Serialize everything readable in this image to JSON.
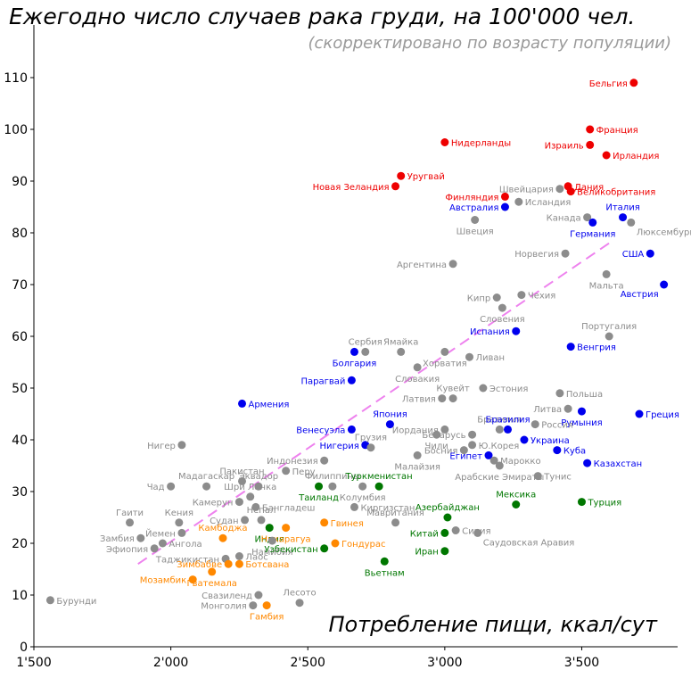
{
  "chart_data": {
    "type": "scatter",
    "title": "Ежегодно число случаев рака груди, на 100'000 чел.",
    "subtitle": "(скорректировано по возрасту популяции)",
    "xlabel": "Потребление пищи, ккал/сут",
    "ylabel": "",
    "xlim": [
      1500,
      3850
    ],
    "ylim": [
      0,
      115
    ],
    "xticks": [
      1500,
      2000,
      2500,
      3000,
      3500
    ],
    "xtick_labels": [
      "1'500",
      "2'000",
      "2'500",
      "3'000",
      "3'500"
    ],
    "yticks": [
      0,
      10,
      20,
      30,
      40,
      50,
      60,
      70,
      80,
      90,
      100,
      110
    ],
    "ytick_labels": [
      "0",
      "10",
      "20",
      "30",
      "40",
      "50",
      "60",
      "70",
      "80",
      "90",
      "100",
      "110"
    ],
    "trend_line": {
      "x": [
        1880,
        3600
      ],
      "y": [
        16,
        78
      ],
      "color": "#ee82ee",
      "style": "dashed"
    },
    "colors": {
      "gray": "#8c8c8c",
      "red": "#ee0000",
      "blue": "#0000ee",
      "green": "#007700",
      "orange": "#ff8800"
    },
    "points": [
      {
        "label": "Бельгия",
        "x": 3690,
        "y": 109,
        "c": "red",
        "a": "l"
      },
      {
        "label": "Франция",
        "x": 3530,
        "y": 100,
        "c": "red",
        "a": "r"
      },
      {
        "label": "Нидерланды",
        "x": 3000,
        "y": 97.5,
        "c": "red",
        "a": "r"
      },
      {
        "label": "Израиль",
        "x": 3530,
        "y": 97,
        "c": "red",
        "a": "l"
      },
      {
        "label": "Ирландия",
        "x": 3590,
        "y": 95,
        "c": "red",
        "a": "r"
      },
      {
        "label": "Уругвай",
        "x": 2840,
        "y": 91,
        "c": "red",
        "a": "r"
      },
      {
        "label": "Новая Зеландия",
        "x": 2820,
        "y": 89,
        "c": "red",
        "a": "l"
      },
      {
        "label": "Дания",
        "x": 3450,
        "y": 89,
        "c": "red",
        "a": "r"
      },
      {
        "label": "Великобритания",
        "x": 3460,
        "y": 88,
        "c": "red",
        "a": "r"
      },
      {
        "label": "Финляндия",
        "x": 3220,
        "y": 87,
        "c": "red",
        "a": "l"
      },
      {
        "label": "Швейцария",
        "x": 3420,
        "y": 88.5,
        "c": "gray",
        "a": "l"
      },
      {
        "label": "Исландия",
        "x": 3270,
        "y": 86,
        "c": "gray",
        "a": "r"
      },
      {
        "label": "Австралия",
        "x": 3220,
        "y": 85,
        "c": "blue",
        "a": "l"
      },
      {
        "label": "Швеция",
        "x": 3110,
        "y": 82.5,
        "c": "gray",
        "a": "b"
      },
      {
        "label": "Канада",
        "x": 3520,
        "y": 83,
        "c": "gray",
        "a": "l"
      },
      {
        "label": "Италия",
        "x": 3650,
        "y": 83,
        "c": "blue",
        "a": "t"
      },
      {
        "label": "Германия",
        "x": 3540,
        "y": 82,
        "c": "blue",
        "a": "b"
      },
      {
        "label": "Люксембург",
        "x": 3680,
        "y": 82,
        "c": "gray",
        "a": "br"
      },
      {
        "label": "Норвегия",
        "x": 3440,
        "y": 76,
        "c": "gray",
        "a": "l"
      },
      {
        "label": "США",
        "x": 3750,
        "y": 76,
        "c": "blue",
        "a": "l"
      },
      {
        "label": "Аргентина",
        "x": 3030,
        "y": 74,
        "c": "gray",
        "a": "l"
      },
      {
        "label": "Мальта",
        "x": 3590,
        "y": 72,
        "c": "gray",
        "a": "b"
      },
      {
        "label": "Австрия",
        "x": 3800,
        "y": 70,
        "c": "blue",
        "a": "bl"
      },
      {
        "label": "Кипр",
        "x": 3190,
        "y": 67.5,
        "c": "gray",
        "a": "l"
      },
      {
        "label": "Чехия",
        "x": 3280,
        "y": 68,
        "c": "gray",
        "a": "r"
      },
      {
        "label": "Словения",
        "x": 3210,
        "y": 65.5,
        "c": "gray",
        "a": "b"
      },
      {
        "label": "Испания",
        "x": 3260,
        "y": 61,
        "c": "blue",
        "a": "l"
      },
      {
        "label": "Португалия",
        "x": 3600,
        "y": 60,
        "c": "gray",
        "a": "t"
      },
      {
        "label": "Венгрия",
        "x": 3460,
        "y": 58,
        "c": "blue",
        "a": "r"
      },
      {
        "label": "Сербия",
        "x": 2710,
        "y": 57,
        "c": "gray",
        "a": "t"
      },
      {
        "label": "Болгария",
        "x": 2670,
        "y": 57,
        "c": "blue",
        "a": "b"
      },
      {
        "label": "Ямайка",
        "x": 2840,
        "y": 57,
        "c": "gray",
        "a": "t"
      },
      {
        "label": "Хорватия",
        "x": 3000,
        "y": 57,
        "c": "gray",
        "a": "b"
      },
      {
        "label": "Ливан",
        "x": 3090,
        "y": 56,
        "c": "gray",
        "a": "r"
      },
      {
        "label": "Словакия",
        "x": 2900,
        "y": 54,
        "c": "gray",
        "a": "b"
      },
      {
        "label": "Парагвай",
        "x": 2660,
        "y": 51.5,
        "c": "blue",
        "a": "l"
      },
      {
        "label": "Польша",
        "x": 3420,
        "y": 49,
        "c": "gray",
        "a": "r"
      },
      {
        "label": "Кувейт",
        "x": 3030,
        "y": 48,
        "c": "gray",
        "a": "t"
      },
      {
        "label": "Эстония",
        "x": 3140,
        "y": 50,
        "c": "gray",
        "a": "r"
      },
      {
        "label": "Латвия",
        "x": 2990,
        "y": 48,
        "c": "gray",
        "a": "l"
      },
      {
        "label": "Армения",
        "x": 2260,
        "y": 47,
        "c": "blue",
        "a": "r"
      },
      {
        "label": "Литва",
        "x": 3450,
        "y": 46,
        "c": "gray",
        "a": "l"
      },
      {
        "label": "Румыния",
        "x": 3500,
        "y": 45.5,
        "c": "blue",
        "a": "b"
      },
      {
        "label": "Греция",
        "x": 3710,
        "y": 45,
        "c": "blue",
        "a": "r"
      },
      {
        "label": "Бразилия",
        "x": 3200,
        "y": 42,
        "c": "gray",
        "a": "t"
      },
      {
        "label": "Бразилия",
        "x": 3230,
        "y": 42,
        "c": "blue",
        "a": "t"
      },
      {
        "label": "Япония",
        "x": 2800,
        "y": 43,
        "c": "blue",
        "a": "t"
      },
      {
        "label": "Иордания",
        "x": 3000,
        "y": 42,
        "c": "gray",
        "a": "l"
      },
      {
        "label": "Россия",
        "x": 3330,
        "y": 43,
        "c": "gray",
        "a": "r"
      },
      {
        "label": "Венесуэла",
        "x": 2660,
        "y": 42,
        "c": "blue",
        "a": "l"
      },
      {
        "label": "Беларусь",
        "x": 3100,
        "y": 41,
        "c": "gray",
        "a": "l"
      },
      {
        "label": "Чили",
        "x": 2970,
        "y": 41,
        "c": "gray",
        "a": "b"
      },
      {
        "label": "Украина",
        "x": 3290,
        "y": 40,
        "c": "blue",
        "a": "r"
      },
      {
        "label": "Нигер",
        "x": 2040,
        "y": 39,
        "c": "gray",
        "a": "l"
      },
      {
        "label": "Нигерия",
        "x": 2710,
        "y": 39,
        "c": "blue",
        "a": "l"
      },
      {
        "label": "Грузия",
        "x": 2730,
        "y": 38.5,
        "c": "gray",
        "a": "t"
      },
      {
        "label": "Ю.Корея",
        "x": 3100,
        "y": 39,
        "c": "gray",
        "a": "r"
      },
      {
        "label": "Босния",
        "x": 3070,
        "y": 38,
        "c": "gray",
        "a": "l"
      },
      {
        "label": "Куба",
        "x": 3410,
        "y": 38,
        "c": "blue",
        "a": "r"
      },
      {
        "label": "Египет",
        "x": 3160,
        "y": 37,
        "c": "blue",
        "a": "l"
      },
      {
        "label": "Марокко",
        "x": 3180,
        "y": 36,
        "c": "gray",
        "a": "r"
      },
      {
        "label": "Малайзия",
        "x": 2900,
        "y": 37,
        "c": "gray",
        "a": "b"
      },
      {
        "label": "Индонезия",
        "x": 2560,
        "y": 36,
        "c": "gray",
        "a": "l"
      },
      {
        "label": "Казахстан",
        "x": 3520,
        "y": 35.5,
        "c": "blue",
        "a": "r"
      },
      {
        "label": "Арабские Эмираты",
        "x": 3200,
        "y": 35,
        "c": "gray",
        "a": "b"
      },
      {
        "label": "Перу",
        "x": 2420,
        "y": 34,
        "c": "gray",
        "a": "r"
      },
      {
        "label": "Тунис",
        "x": 3340,
        "y": 33,
        "c": "gray",
        "a": "r"
      },
      {
        "label": "Пакистан",
        "x": 2260,
        "y": 32,
        "c": "gray",
        "a": "t"
      },
      {
        "label": "Эквадор",
        "x": 2320,
        "y": 31,
        "c": "gray",
        "a": "t"
      },
      {
        "label": "Филиппины",
        "x": 2590,
        "y": 31,
        "c": "gray",
        "a": "t"
      },
      {
        "label": "Туркменистан",
        "x": 2760,
        "y": 31,
        "c": "green",
        "a": "t"
      },
      {
        "label": "Таиланд",
        "x": 2540,
        "y": 31,
        "c": "green",
        "a": "b"
      },
      {
        "label": "Колумбия",
        "x": 2700,
        "y": 31,
        "c": "gray",
        "a": "b"
      },
      {
        "label": "Чад",
        "x": 2000,
        "y": 31,
        "c": "gray",
        "a": "l"
      },
      {
        "label": "Мадагаскар",
        "x": 2130,
        "y": 31,
        "c": "gray",
        "a": "t"
      },
      {
        "label": "Шри Ланка",
        "x": 2290,
        "y": 29,
        "c": "gray",
        "a": "t"
      },
      {
        "label": "Бангладеш",
        "x": 2310,
        "y": 27,
        "c": "gray",
        "a": "r"
      },
      {
        "label": "Мексика",
        "x": 3260,
        "y": 27.5,
        "c": "green",
        "a": "t"
      },
      {
        "label": "Турция",
        "x": 3500,
        "y": 28,
        "c": "green",
        "a": "r"
      },
      {
        "label": "Камерун",
        "x": 2250,
        "y": 28,
        "c": "gray",
        "a": "l"
      },
      {
        "label": "Киргизстан",
        "x": 2670,
        "y": 27,
        "c": "gray",
        "a": "r"
      },
      {
        "label": "Азербайджан",
        "x": 3010,
        "y": 25,
        "c": "green",
        "a": "t"
      },
      {
        "label": "Гаити",
        "x": 1850,
        "y": 24,
        "c": "gray",
        "a": "t"
      },
      {
        "label": "Кения",
        "x": 2030,
        "y": 24,
        "c": "gray",
        "a": "t"
      },
      {
        "label": "Судан",
        "x": 2270,
        "y": 24.5,
        "c": "gray",
        "a": "l"
      },
      {
        "label": "Непал",
        "x": 2330,
        "y": 24.5,
        "c": "gray",
        "a": "t"
      },
      {
        "label": "Мавритания",
        "x": 2820,
        "y": 24,
        "c": "gray",
        "a": "t"
      },
      {
        "label": "Гвинея",
        "x": 2560,
        "y": 24,
        "c": "orange",
        "a": "r"
      },
      {
        "label": "Индия",
        "x": 2360,
        "y": 23,
        "c": "green",
        "a": "b"
      },
      {
        "label": "Никарагуа",
        "x": 2420,
        "y": 23,
        "c": "orange",
        "a": "b"
      },
      {
        "label": "Сирия",
        "x": 3040,
        "y": 22.5,
        "c": "gray",
        "a": "r"
      },
      {
        "label": "Китай",
        "x": 3000,
        "y": 22,
        "c": "green",
        "a": "l"
      },
      {
        "label": "Саудовская Аравия",
        "x": 3120,
        "y": 22,
        "c": "gray",
        "a": "br"
      },
      {
        "label": "Йемен",
        "x": 2040,
        "y": 22,
        "c": "gray",
        "a": "l"
      },
      {
        "label": "Замбия",
        "x": 1890,
        "y": 21,
        "c": "gray",
        "a": "l"
      },
      {
        "label": "Камбоджа",
        "x": 2190,
        "y": 21,
        "c": "orange",
        "a": "t"
      },
      {
        "label": "Намибия",
        "x": 2370,
        "y": 20.5,
        "c": "gray",
        "a": "b"
      },
      {
        "label": "Гондурас",
        "x": 2600,
        "y": 20,
        "c": "orange",
        "a": "r"
      },
      {
        "label": "Ангола",
        "x": 1970,
        "y": 20,
        "c": "gray",
        "a": "r"
      },
      {
        "label": "Эфиопия",
        "x": 1940,
        "y": 19,
        "c": "gray",
        "a": "l"
      },
      {
        "label": "Узбекистан",
        "x": 2560,
        "y": 19,
        "c": "green",
        "a": "l"
      },
      {
        "label": "Иран",
        "x": 3000,
        "y": 18.5,
        "c": "green",
        "a": "l"
      },
      {
        "label": "Таджикистан",
        "x": 2200,
        "y": 17,
        "c": "gray",
        "a": "l"
      },
      {
        "label": "Лаос",
        "x": 2250,
        "y": 17.5,
        "c": "gray",
        "a": "r"
      },
      {
        "label": "Вьетнам",
        "x": 2780,
        "y": 16.5,
        "c": "green",
        "a": "b"
      },
      {
        "label": "Зимбабве",
        "x": 2210,
        "y": 16,
        "c": "orange",
        "a": "l"
      },
      {
        "label": "Ботсвана",
        "x": 2250,
        "y": 16,
        "c": "orange",
        "a": "r"
      },
      {
        "label": "Гватемала",
        "x": 2150,
        "y": 14.5,
        "c": "orange",
        "a": "b"
      },
      {
        "label": "Мозамбик",
        "x": 2080,
        "y": 13,
        "c": "orange",
        "a": "l"
      },
      {
        "label": "Свазиленд",
        "x": 2320,
        "y": 10,
        "c": "gray",
        "a": "l"
      },
      {
        "label": "Лесото",
        "x": 2470,
        "y": 8.5,
        "c": "gray",
        "a": "t"
      },
      {
        "label": "Бурунди",
        "x": 1560,
        "y": 9,
        "c": "gray",
        "a": "r"
      },
      {
        "label": "Монголия",
        "x": 2300,
        "y": 8,
        "c": "gray",
        "a": "l"
      },
      {
        "label": "Гамбия",
        "x": 2350,
        "y": 8,
        "c": "orange",
        "a": "b"
      }
    ]
  }
}
